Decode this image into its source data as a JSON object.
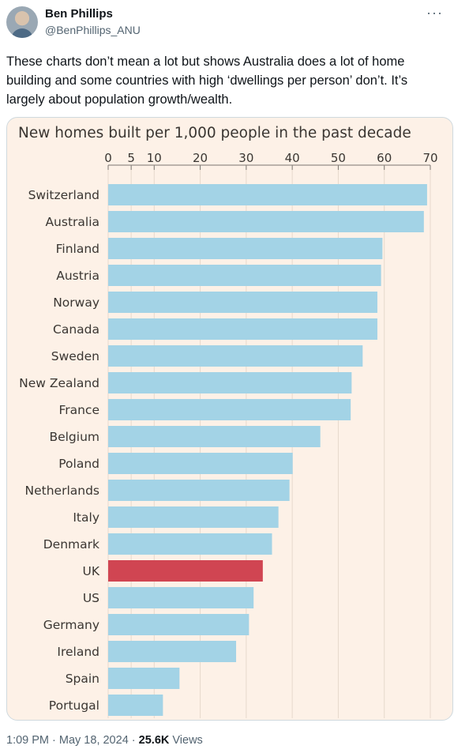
{
  "author": {
    "name": "Ben Phillips",
    "handle": "@BenPhillips_ANU"
  },
  "more_icon": "more-horizontal-icon",
  "tweet": {
    "line1": "These charts don’t mean a lot but shows Australia does a lot of home",
    "line2": "building and some countries with high ‘dwellings per person’ don’t. It’s",
    "line3": "largely about population growth/wealth."
  },
  "meta": {
    "time": "1:09 PM",
    "sep1": " · ",
    "date": "May 18, 2024",
    "sep2": " · ",
    "views_count": "25.6K",
    "views_label": " Views"
  },
  "chart_data": {
    "type": "bar",
    "orientation": "horizontal",
    "title": "New homes built per 1,000 people in the past decade",
    "xlim": [
      0,
      70
    ],
    "x_ticks": [
      0,
      5,
      10,
      20,
      30,
      40,
      50,
      60,
      70
    ],
    "categories": [
      "Switzerland",
      "Australia",
      "Finland",
      "Austria",
      "Norway",
      "Canada",
      "Sweden",
      "New Zealand",
      "France",
      "Belgium",
      "Poland",
      "Netherlands",
      "Italy",
      "Denmark",
      "UK",
      "US",
      "Germany",
      "Ireland",
      "Spain",
      "Portugal"
    ],
    "values": [
      69.3,
      68.6,
      59.6,
      59.3,
      58.5,
      58.5,
      55.3,
      52.9,
      52.7,
      46.1,
      40.1,
      39.4,
      37.0,
      35.6,
      33.6,
      31.6,
      30.6,
      27.8,
      15.5,
      11.9
    ],
    "highlight": "UK",
    "colors": {
      "bar": "#a3d3e6",
      "highlight": "#d04552",
      "background": "#fdf1e7",
      "grid": "#e6d9cc"
    },
    "grid": true
  }
}
